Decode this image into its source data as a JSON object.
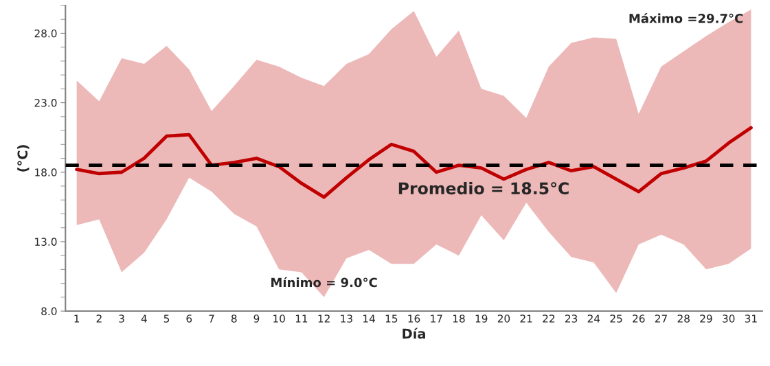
{
  "chart_data": {
    "type": "line",
    "xlabel": "Día",
    "ylabel": "(°C)",
    "categories": [
      "1",
      "2",
      "3",
      "4",
      "5",
      "6",
      "7",
      "8",
      "9",
      "10",
      "11",
      "12",
      "13",
      "14",
      "15",
      "16",
      "17",
      "18",
      "19",
      "20",
      "21",
      "22",
      "23",
      "24",
      "25",
      "26",
      "27",
      "28",
      "29",
      "30",
      "31"
    ],
    "series": [
      {
        "color": "#c00000",
        "values": [
          18.2,
          17.9,
          18.0,
          19.0,
          20.6,
          20.7,
          18.5,
          18.7,
          19.0,
          18.4,
          17.2,
          16.2,
          17.6,
          18.9,
          20.0,
          19.5,
          18.0,
          18.5,
          18.3,
          17.5,
          18.2,
          18.7,
          18.1,
          18.4,
          17.5,
          16.6,
          17.9,
          18.3,
          18.8,
          20.1,
          21.2
        ],
        "lower": [
          14.2,
          14.6,
          10.8,
          12.2,
          14.6,
          17.6,
          16.6,
          15.0,
          14.1,
          11.0,
          10.8,
          9.0,
          11.8,
          12.4,
          11.4,
          11.4,
          12.8,
          12.0,
          14.9,
          13.1,
          15.8,
          13.7,
          11.9,
          11.5,
          9.3,
          12.8,
          13.5,
          12.8,
          11.0,
          11.4,
          12.5
        ],
        "upper": [
          24.6,
          23.1,
          26.2,
          25.8,
          27.1,
          25.4,
          22.4,
          24.2,
          26.1,
          25.6,
          24.8,
          24.2,
          25.8,
          26.5,
          28.3,
          29.6,
          26.3,
          28.2,
          24.0,
          23.5,
          21.9,
          25.6,
          27.3,
          27.7,
          27.6,
          22.2,
          25.6,
          26.7,
          27.8,
          28.8,
          29.7
        ]
      }
    ],
    "ref_lines": [
      {
        "axis": "y",
        "value": 18.5,
        "label": "Promedio = 18.5°C",
        "color": "#000000",
        "line_style": "dashed"
      }
    ],
    "annotations": [
      {
        "text": "Máximo =29.7°C",
        "x": "31",
        "y": 29.7
      },
      {
        "text": "Mínimo = 9.0°C",
        "x": "12",
        "y": 9.0
      }
    ],
    "ylim": [
      8,
      30
    ],
    "yticks": [
      {
        "value": 8,
        "label": "8.0"
      },
      {
        "value": 13,
        "label": "13.0"
      },
      {
        "value": 18,
        "label": "18.0"
      },
      {
        "value": 23,
        "label": "23.0"
      },
      {
        "value": 28,
        "label": "28.0"
      }
    ],
    "grid": false,
    "legend": false,
    "marker": "none",
    "line_style": "solid"
  }
}
